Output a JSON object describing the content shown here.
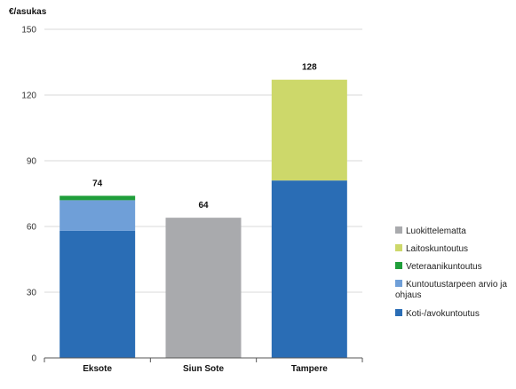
{
  "chart_data": {
    "type": "bar",
    "stacked": true,
    "title": "",
    "ylabel": "€/asukas",
    "xlabel": "",
    "ylim": [
      0,
      150
    ],
    "yticks": [
      0,
      30,
      60,
      90,
      120,
      150
    ],
    "grid": true,
    "legend_position": "right",
    "categories": [
      "Eksote",
      "Siun Sote",
      "Tampere"
    ],
    "totals": [
      74,
      64,
      128
    ],
    "series": [
      {
        "name": "Koti-/avokuntoutus",
        "color": "#2a6db5",
        "values": [
          58,
          0,
          81
        ]
      },
      {
        "name": "Kuntoutustarpeen arvio ja ohjaus",
        "color": "#6f9fd8",
        "values": [
          14,
          0,
          0
        ]
      },
      {
        "name": "Veteraanikuntoutus",
        "color": "#1f9e3a",
        "values": [
          2,
          0,
          0
        ]
      },
      {
        "name": "Laitoskuntoutus",
        "color": "#cdd86a",
        "values": [
          0,
          0,
          46
        ]
      },
      {
        "name": "Luokittelematta",
        "color": "#a9aaad",
        "values": [
          0,
          64,
          0
        ]
      }
    ],
    "legend_order": [
      "Luokittelematta",
      "Laitoskuntoutus",
      "Veteraanikuntoutus",
      "Kuntoutustarpeen arvio ja ohjaus",
      "Koti-/avokuntoutus"
    ]
  }
}
